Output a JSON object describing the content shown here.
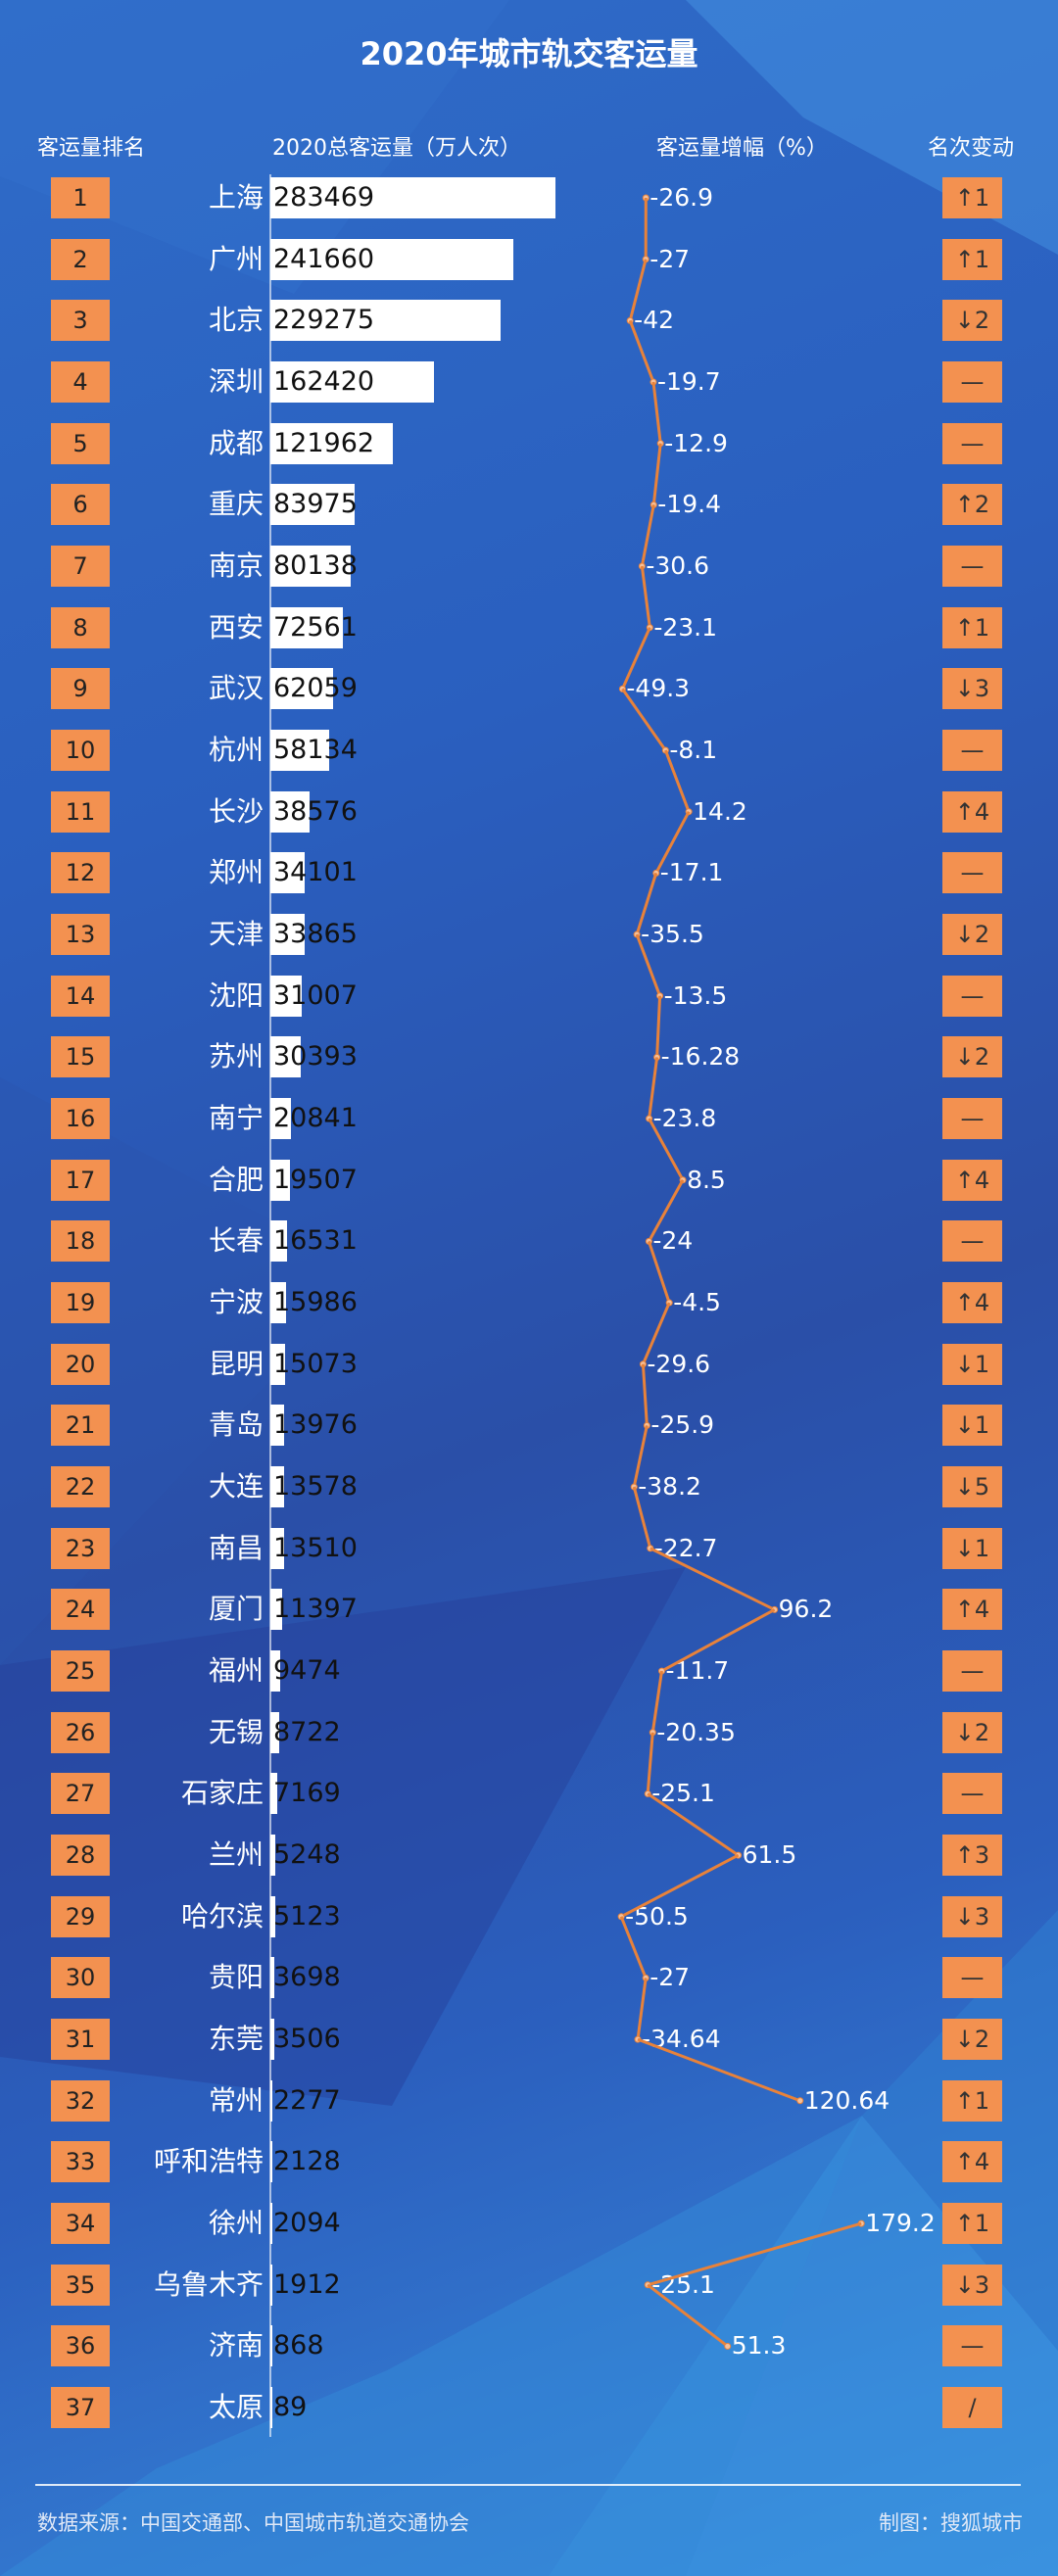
{
  "title": "2020年城市轨交客运量",
  "headers": {
    "rank": "客运量排名",
    "total": "2020总客运量（万人次）",
    "growth": "客运量增幅（%）",
    "change": "名次变动"
  },
  "colors": {
    "accent": "#f39150",
    "line": "#e8823a",
    "bar": "#ffffff",
    "background": "#2a5fbf"
  },
  "footer": {
    "source": "数据来源：中国交通部、中国城市轨道交通协会",
    "credit": "制图：搜狐城市"
  },
  "chart_data": {
    "type": "table",
    "title": "2020年城市轨交客运量",
    "rows": [
      {
        "rank": "1",
        "city": "上海",
        "total": 283469,
        "growth": "-26.9",
        "change": "↑1"
      },
      {
        "rank": "2",
        "city": "广州",
        "total": 241660,
        "growth": "-27",
        "change": "↑1"
      },
      {
        "rank": "3",
        "city": "北京",
        "total": 229275,
        "growth": "-42",
        "change": "↓2"
      },
      {
        "rank": "4",
        "city": "深圳",
        "total": 162420,
        "growth": "-19.7",
        "change": "—"
      },
      {
        "rank": "5",
        "city": "成都",
        "total": 121962,
        "growth": "-12.9",
        "change": "—"
      },
      {
        "rank": "6",
        "city": "重庆",
        "total": 83975,
        "growth": "-19.4",
        "change": "↑2"
      },
      {
        "rank": "7",
        "city": "南京",
        "total": 80138,
        "growth": "-30.6",
        "change": "—"
      },
      {
        "rank": "8",
        "city": "西安",
        "total": 72561,
        "growth": "-23.1",
        "change": "↑1"
      },
      {
        "rank": "9",
        "city": "武汉",
        "total": 62059,
        "growth": "-49.3",
        "change": "↓3"
      },
      {
        "rank": "10",
        "city": "杭州",
        "total": 58134,
        "growth": "-8.1",
        "change": "—"
      },
      {
        "rank": "11",
        "city": "长沙",
        "total": 38576,
        "growth": "14.2",
        "change": "↑4"
      },
      {
        "rank": "12",
        "city": "郑州",
        "total": 34101,
        "growth": "-17.1",
        "change": "—"
      },
      {
        "rank": "13",
        "city": "天津",
        "total": 33865,
        "growth": "-35.5",
        "change": "↓2"
      },
      {
        "rank": "14",
        "city": "沈阳",
        "total": 31007,
        "growth": "-13.5",
        "change": "—"
      },
      {
        "rank": "15",
        "city": "苏州",
        "total": 30393,
        "growth": "-16.28",
        "change": "↓2"
      },
      {
        "rank": "16",
        "city": "南宁",
        "total": 20841,
        "growth": "-23.8",
        "change": "—"
      },
      {
        "rank": "17",
        "city": "合肥",
        "total": 19507,
        "growth": "8.5",
        "change": "↑4"
      },
      {
        "rank": "18",
        "city": "长春",
        "total": 16531,
        "growth": "-24",
        "change": "—"
      },
      {
        "rank": "19",
        "city": "宁波",
        "total": 15986,
        "growth": "-4.5",
        "change": "↑4"
      },
      {
        "rank": "20",
        "city": "昆明",
        "total": 15073,
        "growth": "-29.6",
        "change": "↓1"
      },
      {
        "rank": "21",
        "city": "青岛",
        "total": 13976,
        "growth": "-25.9",
        "change": "↓1"
      },
      {
        "rank": "22",
        "city": "大连",
        "total": 13578,
        "growth": "-38.2",
        "change": "↓5"
      },
      {
        "rank": "23",
        "city": "南昌",
        "total": 13510,
        "growth": "-22.7",
        "change": "↓1"
      },
      {
        "rank": "24",
        "city": "厦门",
        "total": 11397,
        "growth": "96.2",
        "change": "↑4"
      },
      {
        "rank": "25",
        "city": "福州",
        "total": 9474,
        "growth": "-11.7",
        "change": "—"
      },
      {
        "rank": "26",
        "city": "无锡",
        "total": 8722,
        "growth": "-20.35",
        "change": "↓2"
      },
      {
        "rank": "27",
        "city": "石家庄",
        "total": 7169,
        "growth": "-25.1",
        "change": "—"
      },
      {
        "rank": "28",
        "city": "兰州",
        "total": 5248,
        "growth": "61.5",
        "change": "↑3"
      },
      {
        "rank": "29",
        "city": "哈尔滨",
        "total": 5123,
        "growth": "-50.5",
        "change": "↓3"
      },
      {
        "rank": "30",
        "city": "贵阳",
        "total": 3698,
        "growth": "-27",
        "change": "—"
      },
      {
        "rank": "31",
        "city": "东莞",
        "total": 3506,
        "growth": "-34.64",
        "change": "↓2"
      },
      {
        "rank": "32",
        "city": "常州",
        "total": 2277,
        "growth": "120.64",
        "change": "↑1"
      },
      {
        "rank": "33",
        "city": "呼和浩特",
        "total": 2128,
        "growth": null,
        "change": "↑4"
      },
      {
        "rank": "34",
        "city": "徐州",
        "total": 2094,
        "growth": "179.2",
        "change": "↑1"
      },
      {
        "rank": "35",
        "city": "乌鲁木齐",
        "total": 1912,
        "growth": "-25.1",
        "change": "↓3"
      },
      {
        "rank": "36",
        "city": "济南",
        "total": 868,
        "growth": "51.3",
        "change": "—"
      },
      {
        "rank": "37",
        "city": "太原",
        "total": 89,
        "growth": null,
        "change": "/"
      }
    ]
  }
}
